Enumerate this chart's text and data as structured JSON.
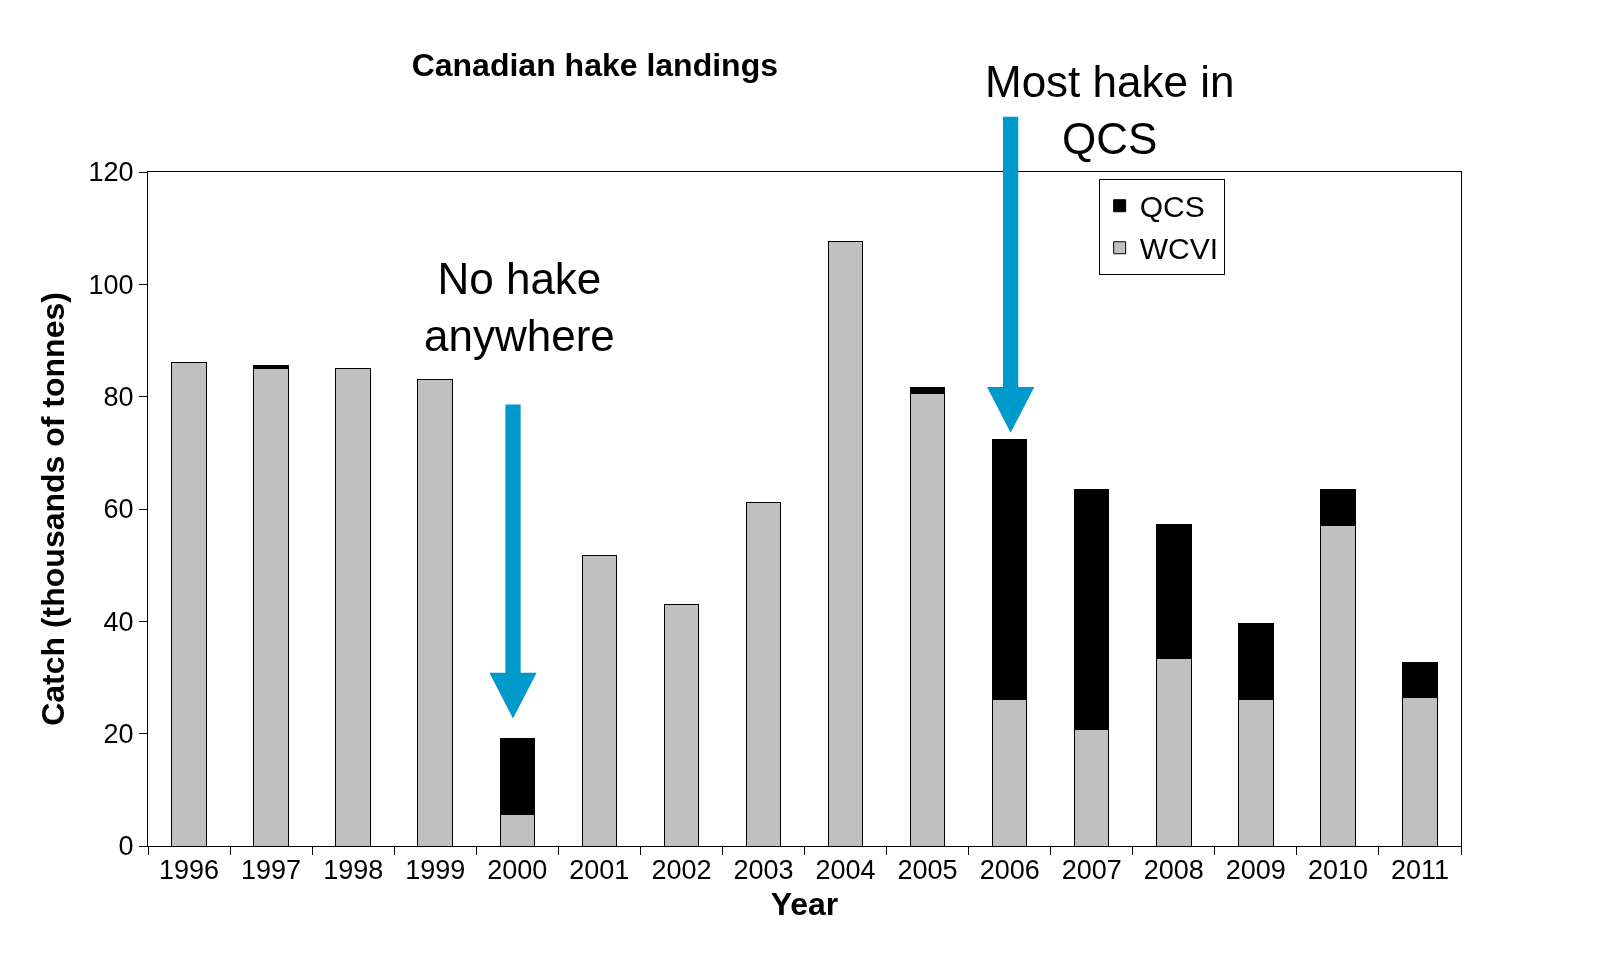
{
  "chart_data": {
    "type": "bar",
    "title": "Canadian hake landings",
    "xlabel": "Year",
    "ylabel": "Catch (thousands of tonnes)",
    "categories": [
      "1996",
      "1997",
      "1998",
      "1999",
      "2000",
      "2001",
      "2002",
      "2003",
      "2004",
      "2005",
      "2006",
      "2007",
      "2008",
      "2009",
      "2010",
      "2011"
    ],
    "stacked": true,
    "series": [
      {
        "name": "WCVI",
        "color": "#c0c0c0",
        "values": [
          86,
          85.1,
          85,
          83,
          5.6,
          51.7,
          43,
          61.2,
          107.7,
          80.6,
          26,
          20.7,
          33.4,
          26.1,
          57,
          26.5
        ]
      },
      {
        "name": "QCS",
        "color": "#000000",
        "values": [
          0,
          0.4,
          0,
          0,
          13.6,
          0,
          0,
          0,
          0,
          1.1,
          46.4,
          42.7,
          23.8,
          13.5,
          6.5,
          6.2
        ]
      }
    ],
    "ylim": [
      0,
      120
    ],
    "yticks": [
      0,
      20,
      40,
      60,
      80,
      100,
      120
    ],
    "grid": false,
    "legend": "top right",
    "annotations": [
      "No hake\nanywhere",
      "Most hake in\nQCS"
    ]
  }
}
